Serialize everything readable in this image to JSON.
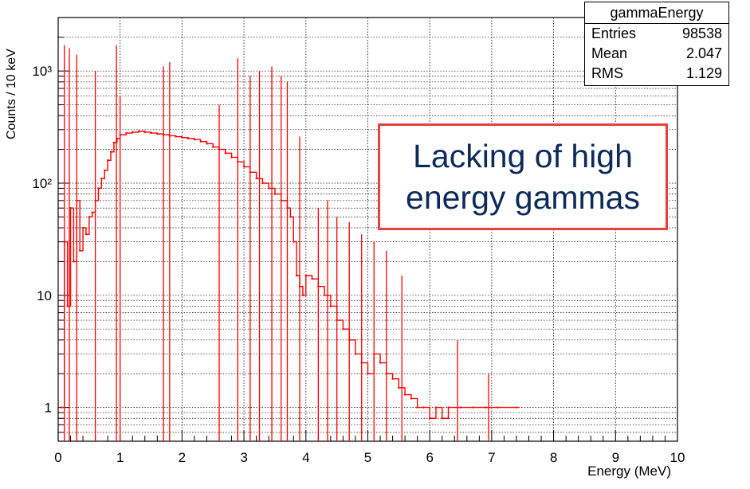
{
  "chart_data": {
    "type": "line",
    "title": "",
    "xlabel": "Energy (MeV)",
    "ylabel": "Counts / 10 keV",
    "xlim": [
      0,
      10
    ],
    "ylim": [
      0.5,
      3000
    ],
    "y_scale": "log",
    "x_ticks": [
      "0",
      "1",
      "2",
      "3",
      "4",
      "5",
      "6",
      "7",
      "8",
      "9",
      "10"
    ],
    "y_ticks": [
      {
        "value": 1,
        "label": "1"
      },
      {
        "value": 10,
        "label": "10"
      },
      {
        "value": 100,
        "label": "10²"
      },
      {
        "value": 1000,
        "label": "10³"
      }
    ],
    "grid": true,
    "line_color": "#ff0000",
    "series": [
      {
        "x": [
          0.05,
          0.1,
          0.15,
          0.2,
          0.25,
          0.3,
          0.35,
          0.4,
          0.45,
          0.5,
          0.55,
          0.6,
          0.65,
          0.7,
          0.75,
          0.8,
          0.85,
          0.9,
          0.95,
          1.0,
          1.1,
          1.2,
          1.3,
          1.4,
          1.5,
          1.6,
          1.7,
          1.8,
          1.9,
          2.0,
          2.1,
          2.2,
          2.3,
          2.4,
          2.5,
          2.6,
          2.7,
          2.8,
          2.9,
          3.0,
          3.1,
          3.2,
          3.3,
          3.4,
          3.5,
          3.6,
          3.7,
          3.75,
          3.8,
          3.85,
          3.9,
          3.95,
          4.0,
          4.1,
          4.2,
          4.3,
          4.4,
          4.5,
          4.6,
          4.7,
          4.8,
          4.9,
          5.0,
          5.1,
          5.2,
          5.3,
          5.4,
          5.5,
          5.6,
          5.7,
          5.8,
          5.9,
          6.0,
          6.1,
          6.2,
          6.3,
          6.5,
          6.7,
          6.9,
          7.1,
          7.4
        ],
        "y": [
          1,
          30,
          8,
          60,
          20,
          70,
          25,
          40,
          35,
          50,
          55,
          70,
          90,
          110,
          130,
          160,
          190,
          230,
          250,
          270,
          280,
          285,
          290,
          285,
          280,
          275,
          270,
          265,
          260,
          255,
          250,
          245,
          235,
          225,
          210,
          200,
          185,
          170,
          155,
          140,
          125,
          110,
          100,
          90,
          80,
          70,
          60,
          50,
          30,
          15,
          12,
          10,
          15,
          14,
          12,
          10,
          8,
          6,
          5,
          4,
          3,
          2.5,
          2,
          3,
          2.5,
          2,
          1.8,
          1.5,
          1.3,
          1.2,
          1,
          1,
          0.8,
          1,
          0.8,
          1,
          1,
          1,
          1,
          1,
          1
        ]
      }
    ],
    "peaks": [
      {
        "x": 0.1,
        "y": 1700
      },
      {
        "x": 0.18,
        "y": 1600
      },
      {
        "x": 0.3,
        "y": 1400
      },
      {
        "x": 0.6,
        "y": 1000
      },
      {
        "x": 0.94,
        "y": 1700
      },
      {
        "x": 1.0,
        "y": 600
      },
      {
        "x": 1.7,
        "y": 1100
      },
      {
        "x": 1.8,
        "y": 1200
      },
      {
        "x": 2.6,
        "y": 500
      },
      {
        "x": 2.9,
        "y": 1300
      },
      {
        "x": 3.1,
        "y": 900
      },
      {
        "x": 3.25,
        "y": 1000
      },
      {
        "x": 3.45,
        "y": 1100
      },
      {
        "x": 3.6,
        "y": 900
      },
      {
        "x": 3.7,
        "y": 800
      },
      {
        "x": 3.9,
        "y": 260
      },
      {
        "x": 4.2,
        "y": 60
      },
      {
        "x": 4.35,
        "y": 70
      },
      {
        "x": 4.5,
        "y": 50
      },
      {
        "x": 4.7,
        "y": 45
      },
      {
        "x": 4.9,
        "y": 35
      },
      {
        "x": 5.1,
        "y": 30
      },
      {
        "x": 5.3,
        "y": 25
      },
      {
        "x": 5.55,
        "y": 15
      },
      {
        "x": 6.45,
        "y": 4
      },
      {
        "x": 6.95,
        "y": 2
      }
    ]
  },
  "stats_box": {
    "title": "gammaEnergy",
    "rows": [
      {
        "label": "Entries",
        "value": "98538"
      },
      {
        "label": "Mean",
        "value": "2.047"
      },
      {
        "label": "RMS",
        "value": "1.129"
      }
    ]
  },
  "annotation": {
    "line1": "Lacking of high",
    "line2": "energy gammas",
    "border_color": "#e8403a",
    "text_color": "#0c2a5a"
  }
}
